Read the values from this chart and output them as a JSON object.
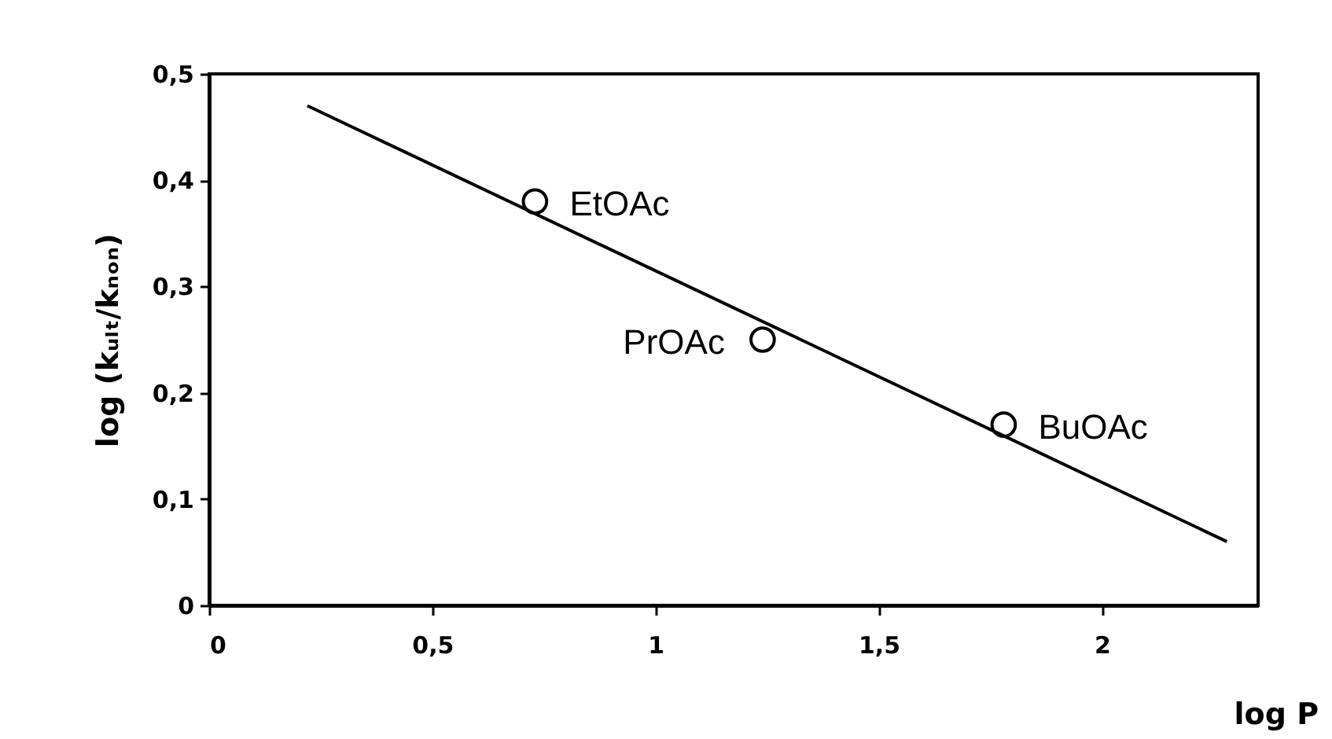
{
  "chart_data": {
    "type": "scatter",
    "xlabel": "log P",
    "ylabel": "log (kᵤₗₜ/kₙₒₙ)",
    "series": [
      {
        "marker": "circle",
        "color": "#000000",
        "x": [
          0.73,
          1.24,
          1.78
        ],
        "values": [
          0.38,
          0.25,
          0.17
        ]
      },
      {
        "type": "line",
        "marker": "none",
        "line_style": "solid",
        "color": "#000000",
        "x": [
          0.22,
          2.28
        ],
        "values": [
          0.47,
          0.06
        ]
      }
    ],
    "annotations": [
      {
        "text": "EtOAc",
        "x": 0.73,
        "y": 0.38
      },
      {
        "text": "PrOAc",
        "x": 1.24,
        "y": 0.25
      },
      {
        "text": "BuOAc",
        "x": 1.78,
        "y": 0.17
      }
    ],
    "xlim": [
      0,
      2.35
    ],
    "ylim": [
      0,
      0.5
    ],
    "xticks": [
      0,
      {
        "value": 0.5,
        "label": "0,5"
      },
      1,
      {
        "value": 1.5,
        "label": "1,5"
      },
      2
    ],
    "yticks": [
      0,
      {
        "value": 0.1,
        "label": "0,1"
      },
      {
        "value": 0.2,
        "label": "0,2"
      },
      {
        "value": 0.3,
        "label": "0,3"
      },
      {
        "value": 0.4,
        "label": "0,4"
      },
      {
        "value": 0.5,
        "label": "0,5"
      }
    ],
    "grid": false
  }
}
